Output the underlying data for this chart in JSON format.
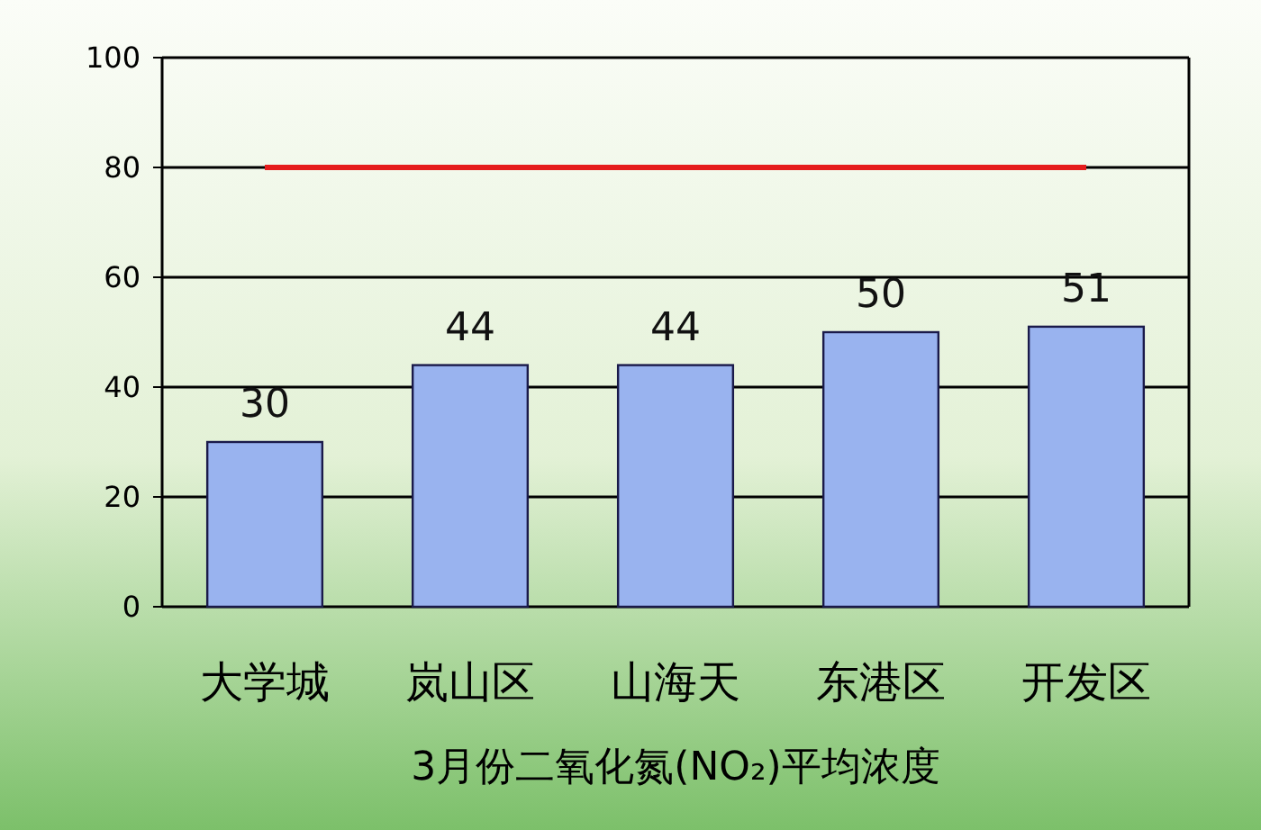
{
  "chart_data": {
    "type": "bar",
    "xlabel": "3月份二氧化氮(NO₂)平均浓度",
    "categories": [
      "大学城",
      "岚山区",
      "山海天",
      "东港区",
      "开发区"
    ],
    "values": [
      30,
      44,
      44,
      50,
      51
    ],
    "color": "#99b3ef",
    "ylim": [
      0,
      100
    ],
    "yticks": [
      0,
      20,
      40,
      60,
      80,
      100
    ],
    "grid": "y",
    "data_labels": true,
    "ref_lines": [
      {
        "axis": "y",
        "value": 80,
        "color": "#e51c1c"
      }
    ]
  }
}
